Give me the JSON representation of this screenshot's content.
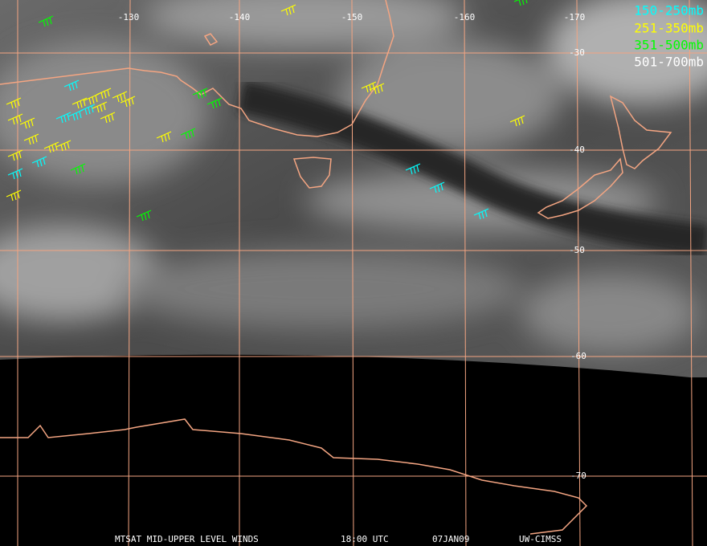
{
  "map": {
    "longitude_labels": [
      "-130",
      "-140",
      "-150",
      "-160",
      "-170"
    ],
    "latitude_labels": [
      "-30",
      "-40",
      "-50",
      "-60",
      "-70"
    ]
  },
  "legend": [
    "150-250mb",
    "251-350mb",
    "351-500mb",
    "501-700mb"
  ],
  "footer": [
    "MTSAT MID-UPPER LEVEL WINDS",
    "18:00 UTC",
    "07JAN09",
    "UW-CIMSS"
  ]
}
